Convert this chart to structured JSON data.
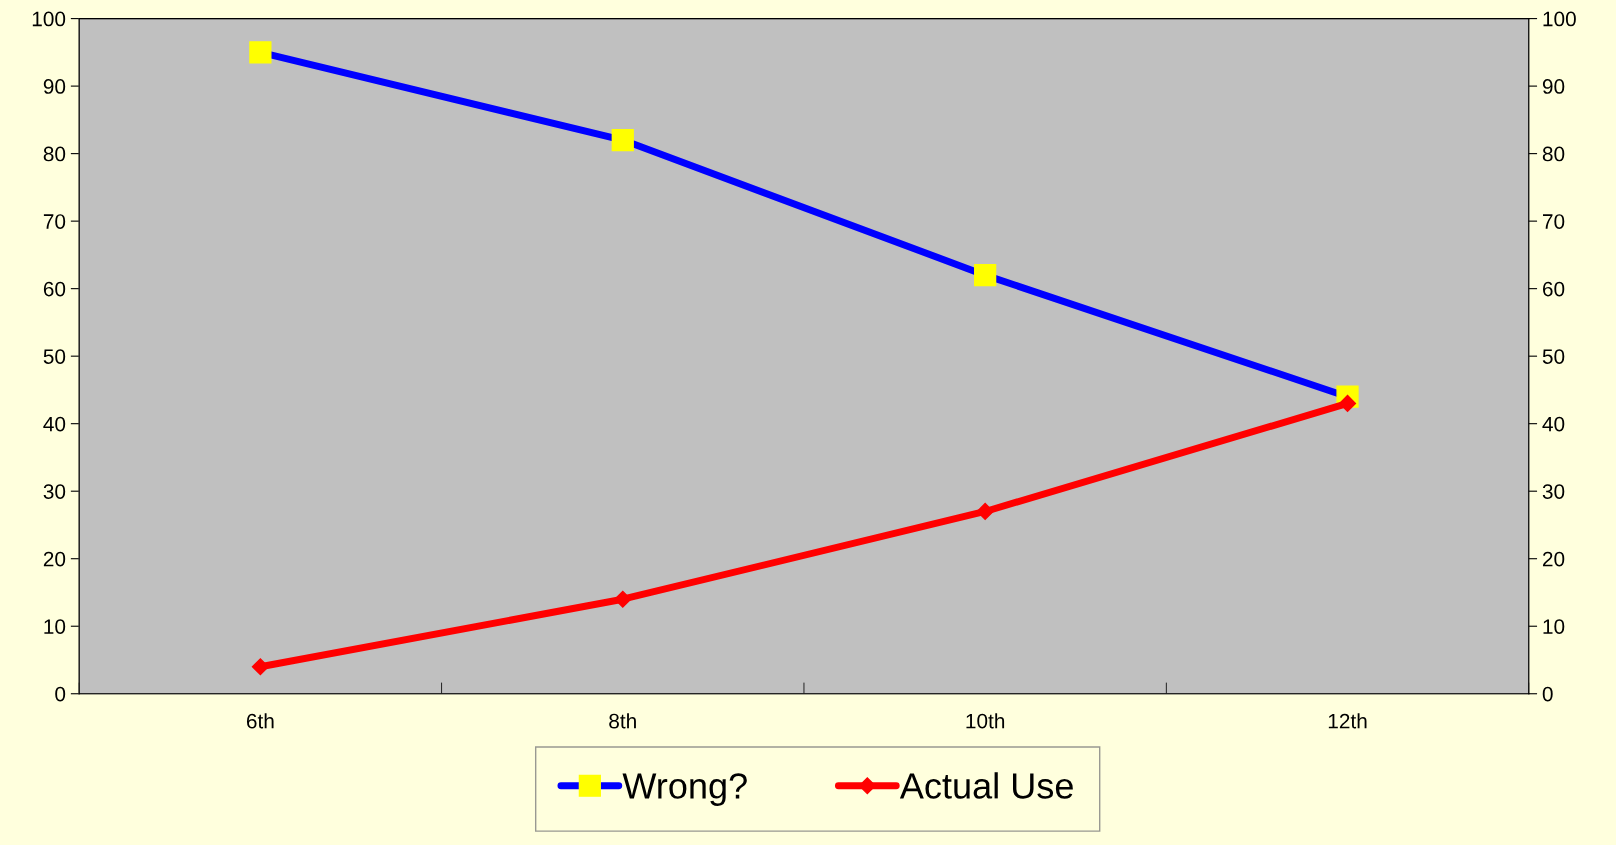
{
  "chart_data": {
    "type": "line",
    "categories": [
      "6th",
      "8th",
      "10th",
      "12th"
    ],
    "series": [
      {
        "name": "Wrong?",
        "color": "#0000ff",
        "marker": "square",
        "values": [
          95,
          82,
          62,
          44
        ]
      },
      {
        "name": "Actual Use",
        "color": "#ff0000",
        "marker": "diamond",
        "values": [
          4,
          14,
          27,
          43
        ]
      }
    ],
    "ylim": [
      0,
      100
    ],
    "yticks": [
      0,
      10,
      20,
      30,
      40,
      50,
      60,
      70,
      80,
      90,
      100
    ],
    "y2lim": [
      0,
      100
    ],
    "y2ticks": [
      0,
      10,
      20,
      30,
      40,
      50,
      60,
      70,
      80,
      90,
      100
    ],
    "grid": false,
    "legend": "bottom",
    "line_style": "solid"
  }
}
